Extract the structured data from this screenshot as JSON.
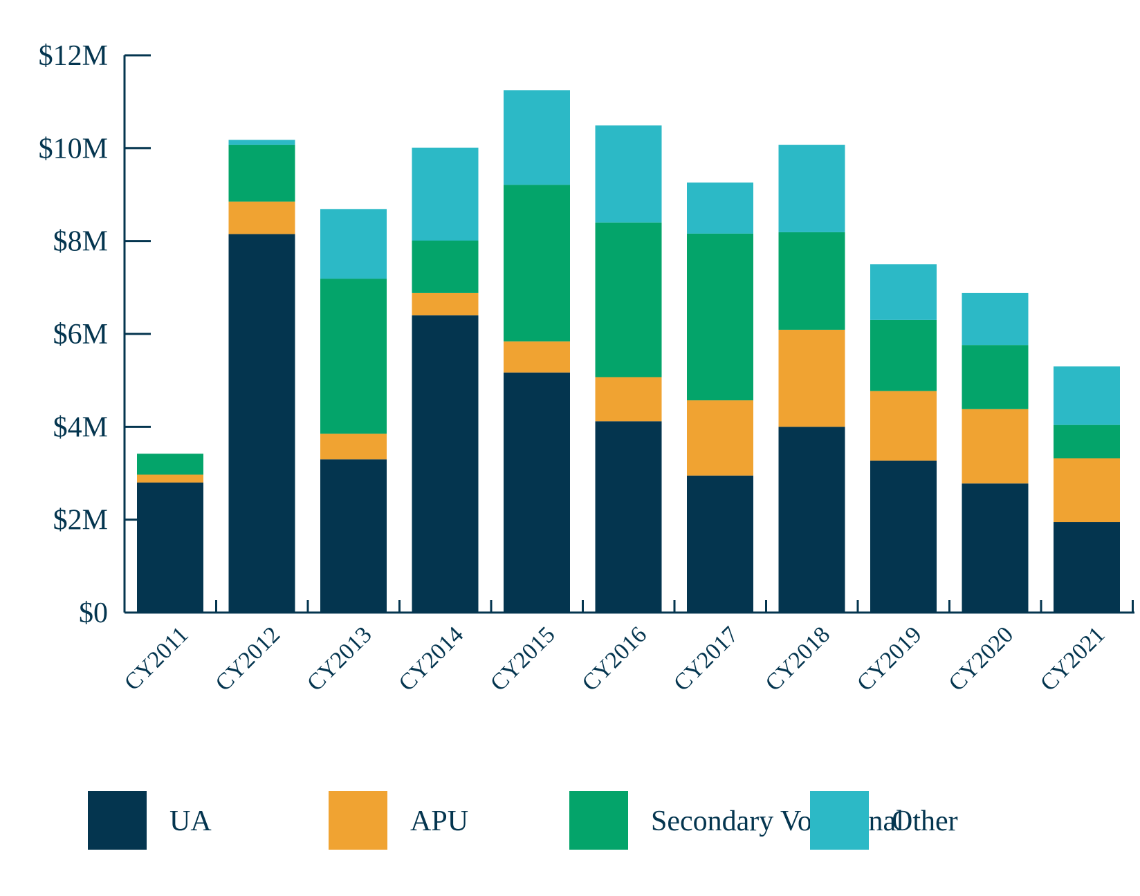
{
  "chart_data": {
    "type": "bar",
    "stacked": true,
    "title": "",
    "xlabel": "",
    "ylabel": "",
    "ylim": [
      0,
      12
    ],
    "y_unit": "$M",
    "y_ticks": [
      0,
      2,
      4,
      6,
      8,
      10,
      12
    ],
    "y_tick_labels": [
      "$0",
      "$2M",
      "$4M",
      "$6M",
      "$8M",
      "$10M",
      "$12M"
    ],
    "categories": [
      "CY2011",
      "CY2012",
      "CY2013",
      "CY2014",
      "CY2015",
      "CY2016",
      "CY2017",
      "CY2018",
      "CY2019",
      "CY2020",
      "CY2021"
    ],
    "series": [
      {
        "name": "UA",
        "color": "#04354f",
        "values": [
          2.8,
          8.15,
          3.3,
          6.4,
          5.17,
          4.12,
          2.95,
          4.0,
          3.27,
          2.78,
          1.95
        ]
      },
      {
        "name": "APU",
        "color": "#f0a332",
        "values": [
          0.17,
          0.7,
          0.55,
          0.48,
          0.67,
          0.95,
          1.62,
          2.09,
          1.5,
          1.6,
          1.37
        ]
      },
      {
        "name": "Secondary Vocational",
        "color": "#04a46a",
        "values": [
          0.45,
          1.22,
          3.34,
          1.13,
          3.37,
          3.33,
          3.59,
          2.1,
          1.53,
          1.38,
          0.72
        ]
      },
      {
        "name": "Other",
        "color": "#2cb9c6",
        "values": [
          0.0,
          0.11,
          1.5,
          2.0,
          2.04,
          2.09,
          1.1,
          1.88,
          1.2,
          1.12,
          1.26
        ]
      }
    ],
    "legend_position": "bottom"
  }
}
